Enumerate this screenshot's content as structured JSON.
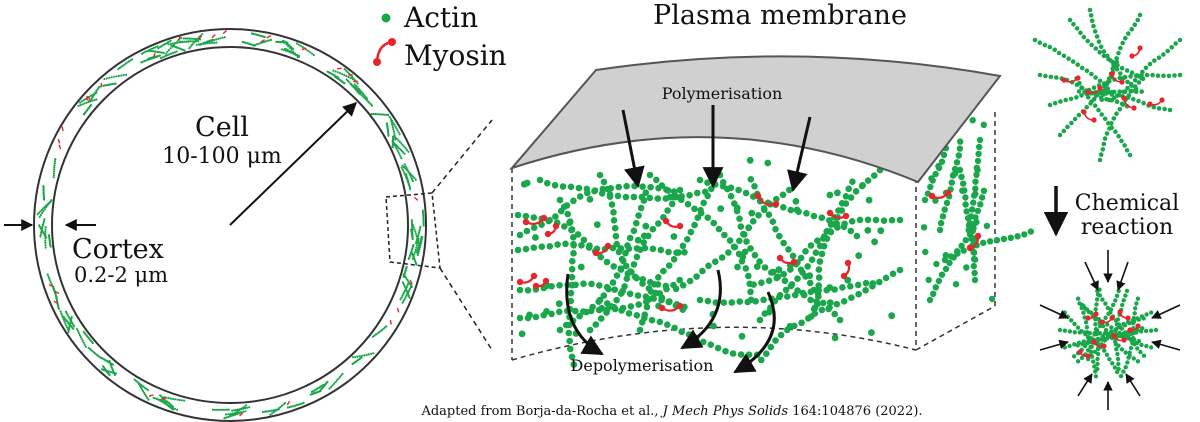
{
  "legend": {
    "actin_label": "Actin",
    "myosin_label": "Myosin"
  },
  "title": "Plasma membrane",
  "cell": {
    "label": "Cell",
    "size": "10-100 μm"
  },
  "cortex": {
    "label": "Cortex",
    "size": "0.2-2 μm"
  },
  "processes": {
    "polymerisation": "Polymerisation",
    "depolymerisation": "Depolymerisation"
  },
  "reaction": {
    "line1": "Chemical",
    "line2": "reaction"
  },
  "citation": {
    "prefix": "Adapted from Borja-da-Rocha et al., ",
    "journal": "J Mech Phys Solids",
    "suffix": " 164:104876 (2022)."
  },
  "colors": {
    "actin": "#1aa64a",
    "myosin": "#e8242c",
    "membrane_fill": "#d0d0d0",
    "outline": "#444444"
  }
}
